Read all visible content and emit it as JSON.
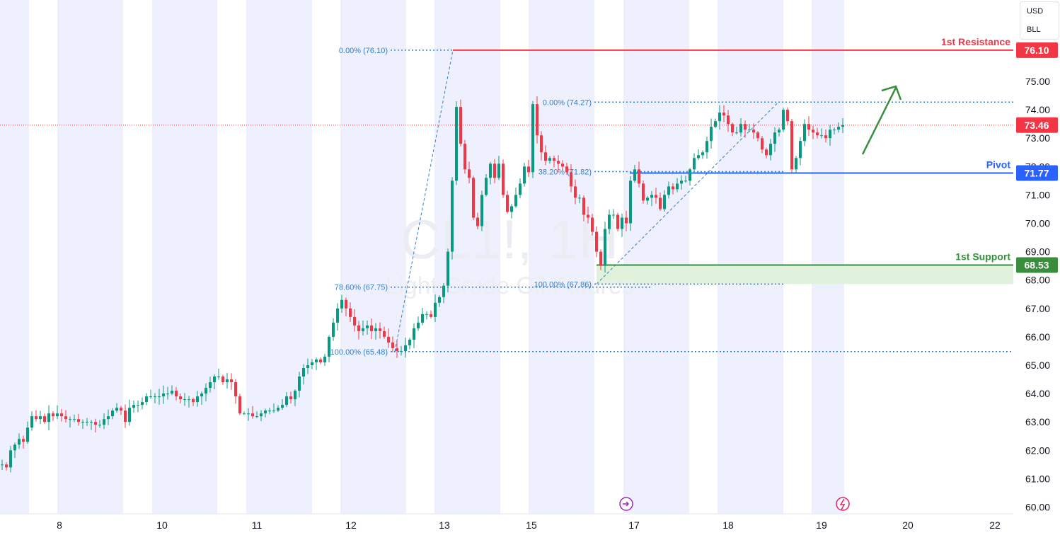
{
  "watermark": {
    "symbol": "CL1!, 1H",
    "name": "Light Crude Oil Futures"
  },
  "currency": {
    "ccy": "USD",
    "unit": "BLL"
  },
  "colors": {
    "up": "#089981",
    "down": "#f23645",
    "shade": "#eef1fd",
    "resistance": "#f23645",
    "pivot": "#2962ff",
    "support": "#388e3c",
    "fib": "#2f7fd0",
    "arrow": "#388e3c",
    "grid": "#787b86"
  },
  "chart_data": {
    "type": "candlestick",
    "x": [
      "8",
      "10",
      "11",
      "12",
      "13",
      "15",
      "17",
      "18",
      "19",
      "20",
      "22"
    ],
    "ylim": [
      59.6,
      76.9
    ],
    "y_ticks": [
      60,
      61,
      62,
      63,
      64,
      65,
      66,
      67,
      68,
      69,
      70,
      71,
      72,
      73,
      74,
      75,
      76
    ],
    "y_tick_labels": [
      "60.00",
      "61.00",
      "62.00",
      "63.00",
      "64.00",
      "65.00",
      "66.00",
      "67.00",
      "68.00",
      "69.00",
      "70.00",
      "71.00",
      "72.00",
      "73.00",
      "74.00",
      "75.00",
      "76.00"
    ],
    "last_price": {
      "value": 73.46,
      "label": "73.46"
    },
    "levels": [
      {
        "name": "1st Resistance",
        "value": 76.1,
        "label": "76.10"
      },
      {
        "name": "Pivot",
        "value": 71.77,
        "label": "71.77"
      },
      {
        "name": "1st Support",
        "value": 68.53,
        "label": "68.53"
      }
    ],
    "support_zone": [
      67.86,
      68.53
    ],
    "fib_1": [
      {
        "label": "0.00% (76.10)",
        "value": 76.1
      },
      {
        "label": "78.60% (67.75)",
        "value": 67.75
      },
      {
        "label": "100.00% (65.48)",
        "value": 65.48
      }
    ],
    "fib_2": [
      {
        "label": "0.00% (74.27)",
        "value": 74.27
      },
      {
        "label": "38.20% (71.82)",
        "value": 71.82
      },
      {
        "label": "100.00% (67.86)",
        "value": 67.86
      }
    ],
    "series": [
      {
        "type": "ohlc",
        "anchors": [
          [
            0,
            61.5
          ],
          [
            6,
            61.4
          ],
          [
            12,
            62.0
          ],
          [
            18,
            62.2
          ],
          [
            24,
            62.4
          ],
          [
            30,
            62.3
          ],
          [
            36,
            62.8
          ],
          [
            42,
            63.2
          ],
          [
            48,
            63.1
          ],
          [
            54,
            63.2
          ],
          [
            60,
            63.0
          ],
          [
            66,
            63.3
          ],
          [
            72,
            63.2
          ],
          [
            78,
            63.3
          ],
          [
            84,
            63.2
          ],
          [
            90,
            63.1
          ],
          [
            96,
            63.1
          ],
          [
            102,
            63.1
          ],
          [
            108,
            63.0
          ],
          [
            114,
            63.0
          ],
          [
            120,
            63.0
          ],
          [
            126,
            63.0
          ],
          [
            132,
            62.9
          ],
          [
            138,
            62.9
          ],
          [
            144,
            63.1
          ],
          [
            150,
            63.2
          ],
          [
            156,
            63.4
          ],
          [
            162,
            63.5
          ],
          [
            168,
            63.4
          ],
          [
            174,
            63.0
          ],
          [
            180,
            63.5
          ],
          [
            186,
            63.6
          ],
          [
            192,
            63.6
          ],
          [
            198,
            63.7
          ],
          [
            204,
            63.9
          ],
          [
            210,
            63.9
          ],
          [
            216,
            63.9
          ],
          [
            222,
            63.9
          ],
          [
            228,
            64.0
          ],
          [
            234,
            64.0
          ],
          [
            240,
            64.1
          ],
          [
            246,
            63.9
          ],
          [
            252,
            63.8
          ],
          [
            258,
            63.8
          ],
          [
            264,
            63.8
          ],
          [
            270,
            63.7
          ],
          [
            276,
            63.9
          ],
          [
            282,
            64.0
          ],
          [
            288,
            64.2
          ],
          [
            294,
            64.4
          ],
          [
            300,
            64.6
          ],
          [
            306,
            64.6
          ],
          [
            312,
            64.4
          ],
          [
            318,
            64.5
          ],
          [
            324,
            64.4
          ],
          [
            330,
            63.9
          ],
          [
            336,
            63.3
          ],
          [
            342,
            63.3
          ],
          [
            348,
            63.3
          ],
          [
            354,
            63.2
          ],
          [
            360,
            63.2
          ],
          [
            366,
            63.3
          ],
          [
            372,
            63.4
          ],
          [
            378,
            63.4
          ],
          [
            384,
            63.4
          ],
          [
            390,
            63.5
          ],
          [
            396,
            63.6
          ],
          [
            402,
            63.9
          ],
          [
            408,
            63.8
          ],
          [
            414,
            64.1
          ],
          [
            420,
            64.6
          ],
          [
            426,
            64.9
          ],
          [
            432,
            65.0
          ],
          [
            438,
            65.1
          ],
          [
            444,
            65.2
          ],
          [
            450,
            65.1
          ],
          [
            456,
            65.3
          ],
          [
            462,
            66.0
          ],
          [
            468,
            66.5
          ],
          [
            474,
            67.0
          ],
          [
            480,
            67.3
          ],
          [
            486,
            67.0
          ],
          [
            492,
            66.7
          ],
          [
            498,
            66.4
          ],
          [
            504,
            66.2
          ],
          [
            510,
            66.3
          ],
          [
            516,
            66.4
          ],
          [
            522,
            66.2
          ],
          [
            528,
            66.3
          ],
          [
            534,
            66.2
          ],
          [
            540,
            66.0
          ],
          [
            546,
            65.8
          ],
          [
            552,
            65.6
          ],
          [
            558,
            65.5
          ],
          [
            564,
            65.5
          ],
          [
            570,
            65.7
          ],
          [
            576,
            65.9
          ],
          [
            582,
            66.3
          ],
          [
            588,
            66.5
          ],
          [
            594,
            66.8
          ],
          [
            600,
            66.8
          ],
          [
            606,
            66.7
          ],
          [
            612,
            67.2
          ],
          [
            618,
            67.4
          ],
          [
            624,
            67.8
          ],
          [
            630,
            69.0
          ],
          [
            636,
            71.5
          ],
          [
            642,
            74.1
          ],
          [
            648,
            72.8
          ],
          [
            654,
            71.9
          ],
          [
            660,
            71.6
          ],
          [
            666,
            70.2
          ],
          [
            672,
            69.9
          ],
          [
            678,
            71.0
          ],
          [
            684,
            71.6
          ],
          [
            690,
            72.1
          ],
          [
            696,
            71.6
          ],
          [
            702,
            72.1
          ],
          [
            708,
            71.0
          ],
          [
            714,
            70.4
          ],
          [
            720,
            70.6
          ],
          [
            726,
            71.0
          ],
          [
            732,
            71.4
          ],
          [
            738,
            72.0
          ],
          [
            744,
            71.8
          ],
          [
            750,
            74.2
          ],
          [
            756,
            73.1
          ],
          [
            762,
            72.5
          ],
          [
            768,
            72.2
          ],
          [
            774,
            72.3
          ],
          [
            780,
            72.2
          ],
          [
            786,
            72.1
          ],
          [
            792,
            72.0
          ],
          [
            798,
            71.8
          ],
          [
            804,
            71.3
          ],
          [
            810,
            70.9
          ],
          [
            816,
            70.9
          ],
          [
            822,
            70.3
          ],
          [
            828,
            70.2
          ],
          [
            834,
            69.7
          ],
          [
            840,
            69.0
          ],
          [
            846,
            68.5
          ],
          [
            852,
            69.8
          ],
          [
            858,
            70.3
          ],
          [
            864,
            70.3
          ],
          [
            870,
            69.8
          ],
          [
            876,
            70.2
          ],
          [
            882,
            70.0
          ],
          [
            888,
            71.5
          ],
          [
            894,
            71.9
          ],
          [
            900,
            71.4
          ],
          [
            906,
            70.8
          ],
          [
            912,
            70.9
          ],
          [
            918,
            71.0
          ],
          [
            924,
            70.9
          ],
          [
            930,
            70.5
          ],
          [
            936,
            71.0
          ],
          [
            942,
            71.3
          ],
          [
            948,
            71.2
          ],
          [
            954,
            71.4
          ],
          [
            960,
            71.5
          ],
          [
            966,
            71.5
          ],
          [
            972,
            71.9
          ],
          [
            978,
            72.3
          ],
          [
            984,
            72.4
          ],
          [
            990,
            72.5
          ],
          [
            996,
            72.9
          ],
          [
            1002,
            73.4
          ],
          [
            1008,
            73.6
          ],
          [
            1014,
            73.9
          ],
          [
            1020,
            73.8
          ],
          [
            1026,
            73.5
          ],
          [
            1032,
            73.2
          ],
          [
            1038,
            73.2
          ],
          [
            1044,
            73.5
          ],
          [
            1050,
            73.3
          ],
          [
            1056,
            73.3
          ],
          [
            1062,
            73.2
          ],
          [
            1068,
            73.0
          ],
          [
            1074,
            72.6
          ],
          [
            1080,
            72.4
          ],
          [
            1086,
            72.8
          ],
          [
            1092,
            73.2
          ],
          [
            1098,
            73.3
          ],
          [
            1104,
            74.0
          ],
          [
            1110,
            73.6
          ],
          [
            1116,
            71.9
          ],
          [
            1122,
            72.3
          ],
          [
            1128,
            72.9
          ],
          [
            1134,
            73.5
          ],
          [
            1140,
            73.3
          ],
          [
            1146,
            73.2
          ],
          [
            1152,
            73.1
          ],
          [
            1158,
            73.1
          ],
          [
            1164,
            73.0
          ],
          [
            1170,
            73.3
          ],
          [
            1176,
            73.3
          ],
          [
            1182,
            73.4
          ],
          [
            1188,
            73.46
          ]
        ],
        "note": "anchors are [time index, close] read from the chart; OHLC bars synthesized between anchors"
      }
    ]
  }
}
